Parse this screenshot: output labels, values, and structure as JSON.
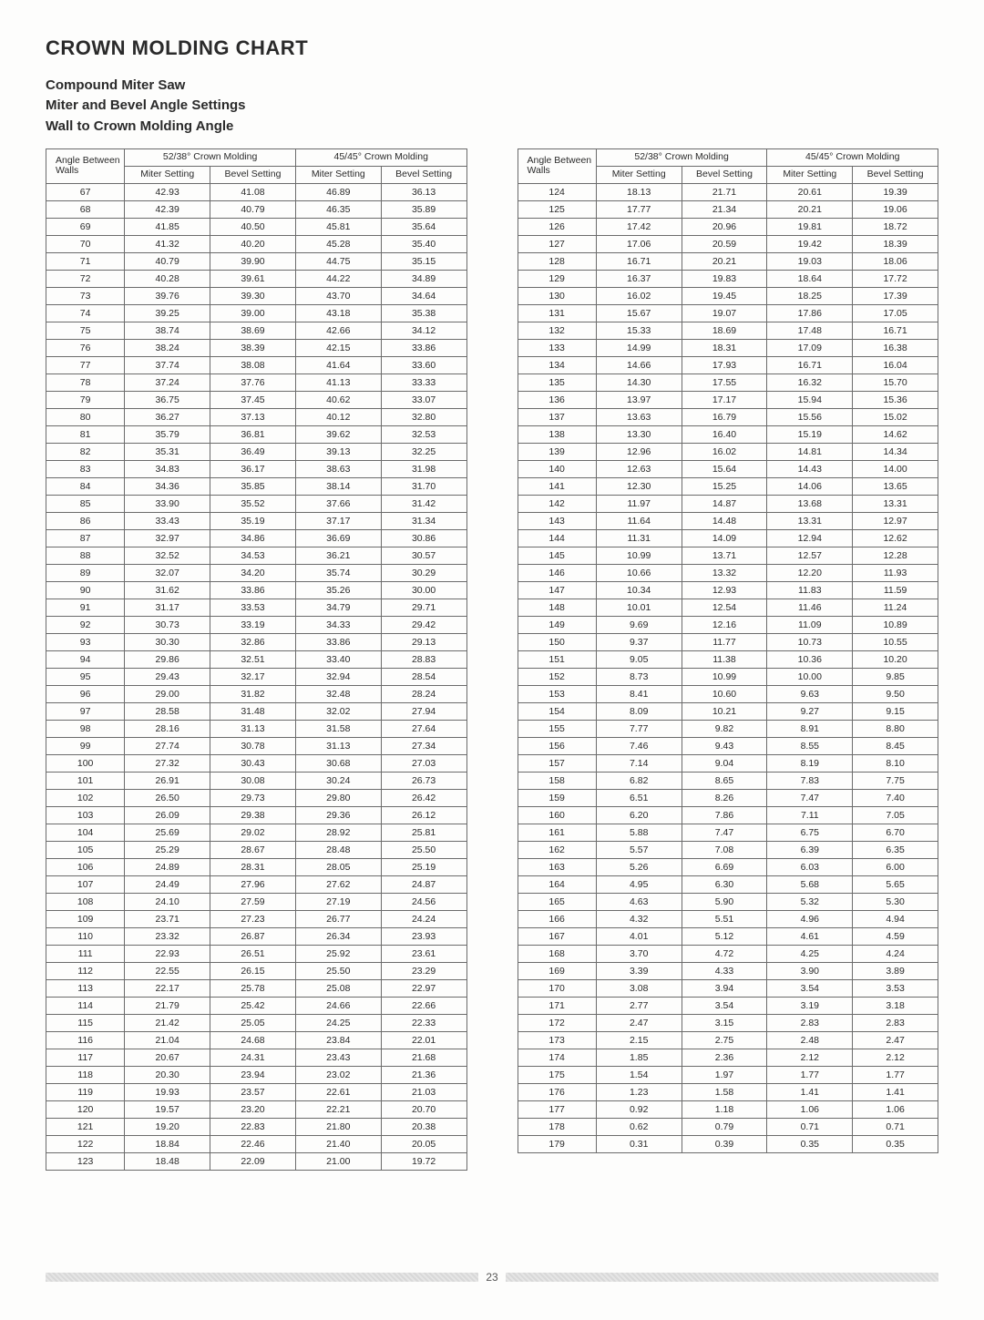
{
  "title": "CROWN MOLDING CHART",
  "subtitle1": "Compound Miter Saw",
  "subtitle2": "Miter and Bevel Angle Settings",
  "subtitle3": "Wall to Crown Molding Angle",
  "headers": {
    "angle": "Angle Between Walls",
    "group1": "52/38° Crown Molding",
    "group2": "45/45° Crown Molding",
    "miter": "Miter Setting",
    "bevel": "Bevel Setting"
  },
  "page_number": "23",
  "table1_rows": [
    [
      "67",
      "42.93",
      "41.08",
      "46.89",
      "36.13"
    ],
    [
      "68",
      "42.39",
      "40.79",
      "46.35",
      "35.89"
    ],
    [
      "69",
      "41.85",
      "40.50",
      "45.81",
      "35.64"
    ],
    [
      "70",
      "41.32",
      "40.20",
      "45.28",
      "35.40"
    ],
    [
      "71",
      "40.79",
      "39.90",
      "44.75",
      "35.15"
    ],
    [
      "72",
      "40.28",
      "39.61",
      "44.22",
      "34.89"
    ],
    [
      "73",
      "39.76",
      "39.30",
      "43.70",
      "34.64"
    ],
    [
      "74",
      "39.25",
      "39.00",
      "43.18",
      "35.38"
    ],
    [
      "75",
      "38.74",
      "38.69",
      "42.66",
      "34.12"
    ],
    [
      "76",
      "38.24",
      "38.39",
      "42.15",
      "33.86"
    ],
    [
      "77",
      "37.74",
      "38.08",
      "41.64",
      "33.60"
    ],
    [
      "78",
      "37.24",
      "37.76",
      "41.13",
      "33.33"
    ],
    [
      "79",
      "36.75",
      "37.45",
      "40.62",
      "33.07"
    ],
    [
      "80",
      "36.27",
      "37.13",
      "40.12",
      "32.80"
    ],
    [
      "81",
      "35.79",
      "36.81",
      "39.62",
      "32.53"
    ],
    [
      "82",
      "35.31",
      "36.49",
      "39.13",
      "32.25"
    ],
    [
      "83",
      "34.83",
      "36.17",
      "38.63",
      "31.98"
    ],
    [
      "84",
      "34.36",
      "35.85",
      "38.14",
      "31.70"
    ],
    [
      "85",
      "33.90",
      "35.52",
      "37.66",
      "31.42"
    ],
    [
      "86",
      "33.43",
      "35.19",
      "37.17",
      "31.34"
    ],
    [
      "87",
      "32.97",
      "34.86",
      "36.69",
      "30.86"
    ],
    [
      "88",
      "32.52",
      "34.53",
      "36.21",
      "30.57"
    ],
    [
      "89",
      "32.07",
      "34.20",
      "35.74",
      "30.29"
    ],
    [
      "90",
      "31.62",
      "33.86",
      "35.26",
      "30.00"
    ],
    [
      "91",
      "31.17",
      "33.53",
      "34.79",
      "29.71"
    ],
    [
      "92",
      "30.73",
      "33.19",
      "34.33",
      "29.42"
    ],
    [
      "93",
      "30.30",
      "32.86",
      "33.86",
      "29.13"
    ],
    [
      "94",
      "29.86",
      "32.51",
      "33.40",
      "28.83"
    ],
    [
      "95",
      "29.43",
      "32.17",
      "32.94",
      "28.54"
    ],
    [
      "96",
      "29.00",
      "31.82",
      "32.48",
      "28.24"
    ],
    [
      "97",
      "28.58",
      "31.48",
      "32.02",
      "27.94"
    ],
    [
      "98",
      "28.16",
      "31.13",
      "31.58",
      "27.64"
    ],
    [
      "99",
      "27.74",
      "30.78",
      "31.13",
      "27.34"
    ],
    [
      "100",
      "27.32",
      "30.43",
      "30.68",
      "27.03"
    ],
    [
      "101",
      "26.91",
      "30.08",
      "30.24",
      "26.73"
    ],
    [
      "102",
      "26.50",
      "29.73",
      "29.80",
      "26.42"
    ],
    [
      "103",
      "26.09",
      "29.38",
      "29.36",
      "26.12"
    ],
    [
      "104",
      "25.69",
      "29.02",
      "28.92",
      "25.81"
    ],
    [
      "105",
      "25.29",
      "28.67",
      "28.48",
      "25.50"
    ],
    [
      "106",
      "24.89",
      "28.31",
      "28.05",
      "25.19"
    ],
    [
      "107",
      "24.49",
      "27.96",
      "27.62",
      "24.87"
    ],
    [
      "108",
      "24.10",
      "27.59",
      "27.19",
      "24.56"
    ],
    [
      "109",
      "23.71",
      "27.23",
      "26.77",
      "24.24"
    ],
    [
      "110",
      "23.32",
      "26.87",
      "26.34",
      "23.93"
    ],
    [
      "111",
      "22.93",
      "26.51",
      "25.92",
      "23.61"
    ],
    [
      "112",
      "22.55",
      "26.15",
      "25.50",
      "23.29"
    ],
    [
      "113",
      "22.17",
      "25.78",
      "25.08",
      "22.97"
    ],
    [
      "114",
      "21.79",
      "25.42",
      "24.66",
      "22.66"
    ],
    [
      "115",
      "21.42",
      "25.05",
      "24.25",
      "22.33"
    ],
    [
      "116",
      "21.04",
      "24.68",
      "23.84",
      "22.01"
    ],
    [
      "117",
      "20.67",
      "24.31",
      "23.43",
      "21.68"
    ],
    [
      "118",
      "20.30",
      "23.94",
      "23.02",
      "21.36"
    ],
    [
      "119",
      "19.93",
      "23.57",
      "22.61",
      "21.03"
    ],
    [
      "120",
      "19.57",
      "23.20",
      "22.21",
      "20.70"
    ],
    [
      "121",
      "19.20",
      "22.83",
      "21.80",
      "20.38"
    ],
    [
      "122",
      "18.84",
      "22.46",
      "21.40",
      "20.05"
    ],
    [
      "123",
      "18.48",
      "22.09",
      "21.00",
      "19.72"
    ]
  ],
  "table2_rows": [
    [
      "124",
      "18.13",
      "21.71",
      "20.61",
      "19.39"
    ],
    [
      "125",
      "17.77",
      "21.34",
      "20.21",
      "19.06"
    ],
    [
      "126",
      "17.42",
      "20.96",
      "19.81",
      "18.72"
    ],
    [
      "127",
      "17.06",
      "20.59",
      "19.42",
      "18.39"
    ],
    [
      "128",
      "16.71",
      "20.21",
      "19.03",
      "18.06"
    ],
    [
      "129",
      "16.37",
      "19.83",
      "18.64",
      "17.72"
    ],
    [
      "130",
      "16.02",
      "19.45",
      "18.25",
      "17.39"
    ],
    [
      "131",
      "15.67",
      "19.07",
      "17.86",
      "17.05"
    ],
    [
      "132",
      "15.33",
      "18.69",
      "17.48",
      "16.71"
    ],
    [
      "133",
      "14.99",
      "18.31",
      "17.09",
      "16.38"
    ],
    [
      "134",
      "14.66",
      "17.93",
      "16.71",
      "16.04"
    ],
    [
      "135",
      "14.30",
      "17.55",
      "16.32",
      "15.70"
    ],
    [
      "136",
      "13.97",
      "17.17",
      "15.94",
      "15.36"
    ],
    [
      "137",
      "13.63",
      "16.79",
      "15.56",
      "15.02"
    ],
    [
      "138",
      "13.30",
      "16.40",
      "15.19",
      "14.62"
    ],
    [
      "139",
      "12.96",
      "16.02",
      "14.81",
      "14.34"
    ],
    [
      "140",
      "12.63",
      "15.64",
      "14.43",
      "14.00"
    ],
    [
      "141",
      "12.30",
      "15.25",
      "14.06",
      "13.65"
    ],
    [
      "142",
      "11.97",
      "14.87",
      "13.68",
      "13.31"
    ],
    [
      "143",
      "11.64",
      "14.48",
      "13.31",
      "12.97"
    ],
    [
      "144",
      "11.31",
      "14.09",
      "12.94",
      "12.62"
    ],
    [
      "145",
      "10.99",
      "13.71",
      "12.57",
      "12.28"
    ],
    [
      "146",
      "10.66",
      "13.32",
      "12.20",
      "11.93"
    ],
    [
      "147",
      "10.34",
      "12.93",
      "11.83",
      "11.59"
    ],
    [
      "148",
      "10.01",
      "12.54",
      "11.46",
      "11.24"
    ],
    [
      "149",
      "9.69",
      "12.16",
      "11.09",
      "10.89"
    ],
    [
      "150",
      "9.37",
      "11.77",
      "10.73",
      "10.55"
    ],
    [
      "151",
      "9.05",
      "11.38",
      "10.36",
      "10.20"
    ],
    [
      "152",
      "8.73",
      "10.99",
      "10.00",
      "9.85"
    ],
    [
      "153",
      "8.41",
      "10.60",
      "9.63",
      "9.50"
    ],
    [
      "154",
      "8.09",
      "10.21",
      "9.27",
      "9.15"
    ],
    [
      "155",
      "7.77",
      "9.82",
      "8.91",
      "8.80"
    ],
    [
      "156",
      "7.46",
      "9.43",
      "8.55",
      "8.45"
    ],
    [
      "157",
      "7.14",
      "9.04",
      "8.19",
      "8.10"
    ],
    [
      "158",
      "6.82",
      "8.65",
      "7.83",
      "7.75"
    ],
    [
      "159",
      "6.51",
      "8.26",
      "7.47",
      "7.40"
    ],
    [
      "160",
      "6.20",
      "7.86",
      "7.11",
      "7.05"
    ],
    [
      "161",
      "5.88",
      "7.47",
      "6.75",
      "6.70"
    ],
    [
      "162",
      "5.57",
      "7.08",
      "6.39",
      "6.35"
    ],
    [
      "163",
      "5.26",
      "6.69",
      "6.03",
      "6.00"
    ],
    [
      "164",
      "4.95",
      "6.30",
      "5.68",
      "5.65"
    ],
    [
      "165",
      "4.63",
      "5.90",
      "5.32",
      "5.30"
    ],
    [
      "166",
      "4.32",
      "5.51",
      "4.96",
      "4.94"
    ],
    [
      "167",
      "4.01",
      "5.12",
      "4.61",
      "4.59"
    ],
    [
      "168",
      "3.70",
      "4.72",
      "4.25",
      "4.24"
    ],
    [
      "169",
      "3.39",
      "4.33",
      "3.90",
      "3.89"
    ],
    [
      "170",
      "3.08",
      "3.94",
      "3.54",
      "3.53"
    ],
    [
      "171",
      "2.77",
      "3.54",
      "3.19",
      "3.18"
    ],
    [
      "172",
      "2.47",
      "3.15",
      "2.83",
      "2.83"
    ],
    [
      "173",
      "2.15",
      "2.75",
      "2.48",
      "2.47"
    ],
    [
      "174",
      "1.85",
      "2.36",
      "2.12",
      "2.12"
    ],
    [
      "175",
      "1.54",
      "1.97",
      "1.77",
      "1.77"
    ],
    [
      "176",
      "1.23",
      "1.58",
      "1.41",
      "1.41"
    ],
    [
      "177",
      "0.92",
      "1.18",
      "1.06",
      "1.06"
    ],
    [
      "178",
      "0.62",
      "0.79",
      "0.71",
      "0.71"
    ],
    [
      "179",
      "0.31",
      "0.39",
      "0.35",
      "0.35"
    ]
  ]
}
